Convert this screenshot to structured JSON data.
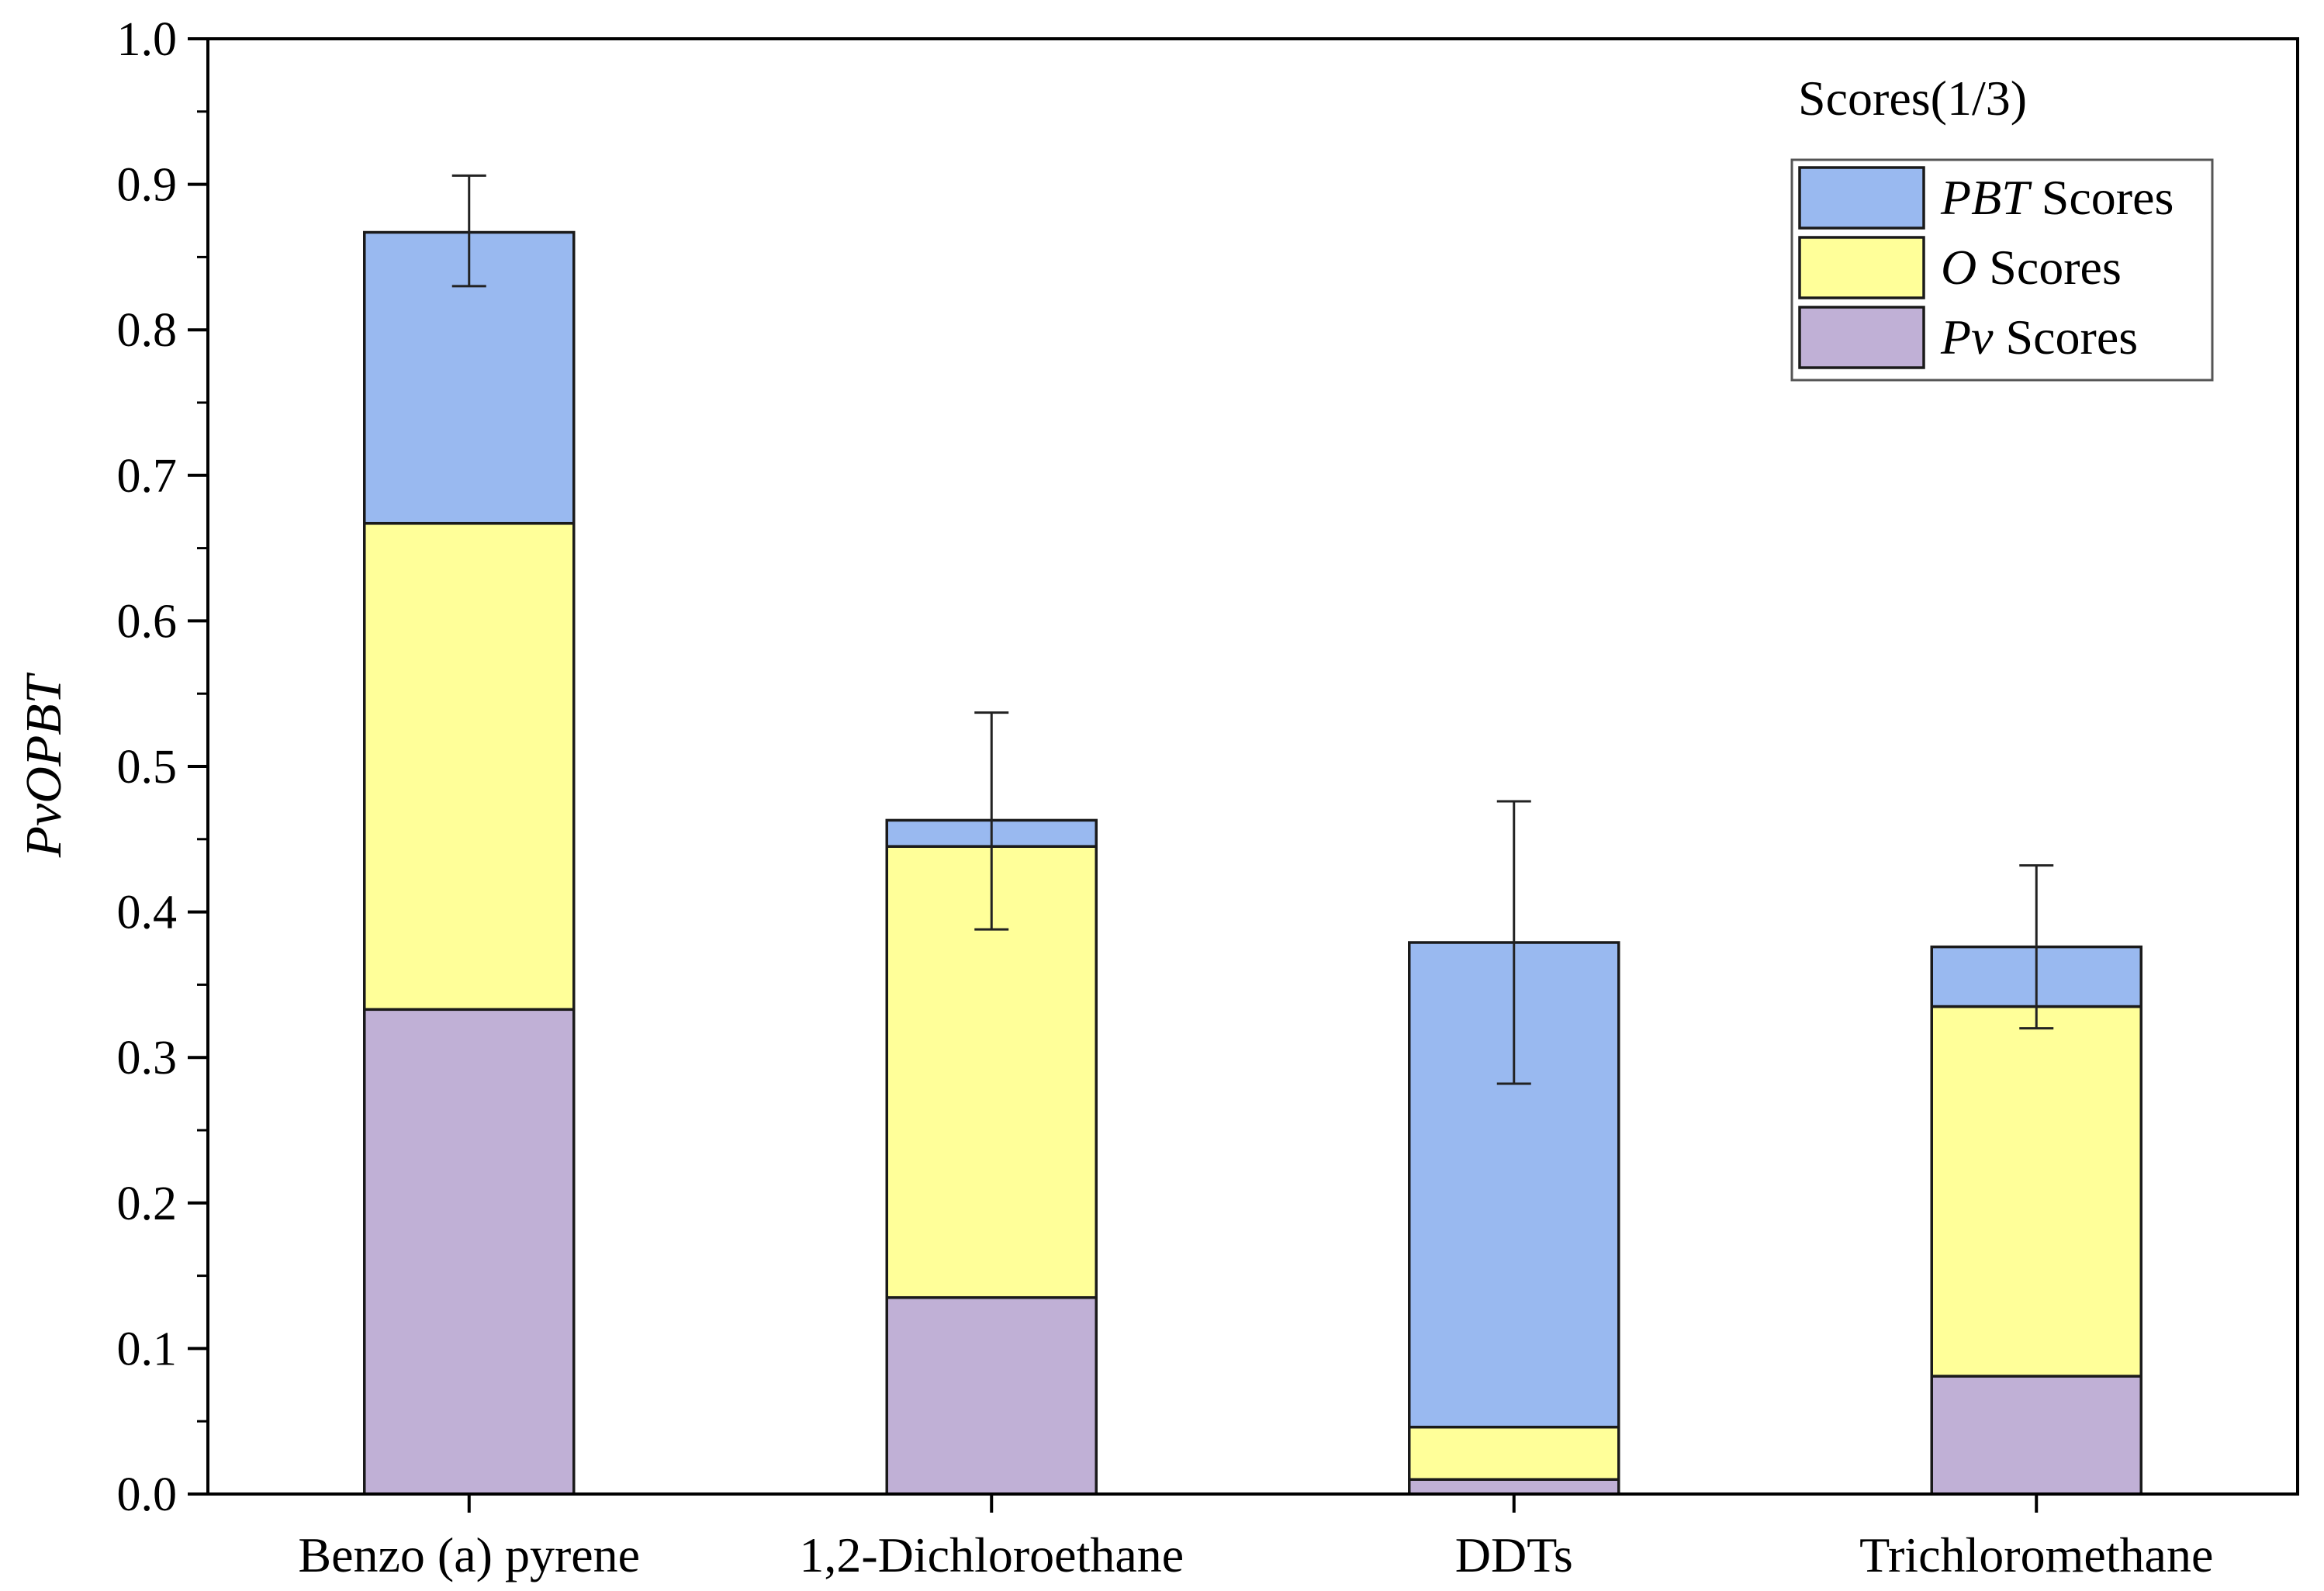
{
  "chart_data": {
    "type": "bar",
    "stacked": true,
    "title": "",
    "xlabel": "",
    "ylabel": "PvOPBT",
    "ylim": [
      0.0,
      1.0
    ],
    "yticks": [
      "0.0",
      "0.1",
      "0.2",
      "0.3",
      "0.4",
      "0.5",
      "0.6",
      "0.7",
      "0.8",
      "0.9",
      "1.0"
    ],
    "categories": [
      "Benzo (a) pyrene",
      "1,2-Dichloroethane",
      "DDTs",
      "Trichloromethane"
    ],
    "series": [
      {
        "name": "Pv Scores",
        "name_italic": "Pv",
        "name_rest": " Scores",
        "color": "#c0b0d6",
        "values": [
          0.333,
          0.135,
          0.01,
          0.081
        ]
      },
      {
        "name": "O Scores",
        "name_italic": "O",
        "name_rest": " Scores",
        "color": "#ffff99",
        "values": [
          0.334,
          0.31,
          0.036,
          0.254
        ]
      },
      {
        "name": "PBT Scores",
        "name_italic": "PBT",
        "name_rest": " Scores",
        "color": "#99b9f0",
        "values": [
          0.2,
          0.018,
          0.333,
          0.041
        ]
      }
    ],
    "totals": [
      0.867,
      0.463,
      0.379,
      0.376
    ],
    "error_bars": [
      {
        "low": 0.83,
        "high": 0.906
      },
      {
        "low": 0.388,
        "high": 0.537
      },
      {
        "low": 0.282,
        "high": 0.476
      },
      {
        "low": 0.32,
        "high": 0.432
      }
    ],
    "legend": {
      "title": "Scores(1/3)",
      "position": "top-right",
      "order": [
        "PBT Scores",
        "O Scores",
        "Pv Scores"
      ]
    },
    "grid": false
  }
}
